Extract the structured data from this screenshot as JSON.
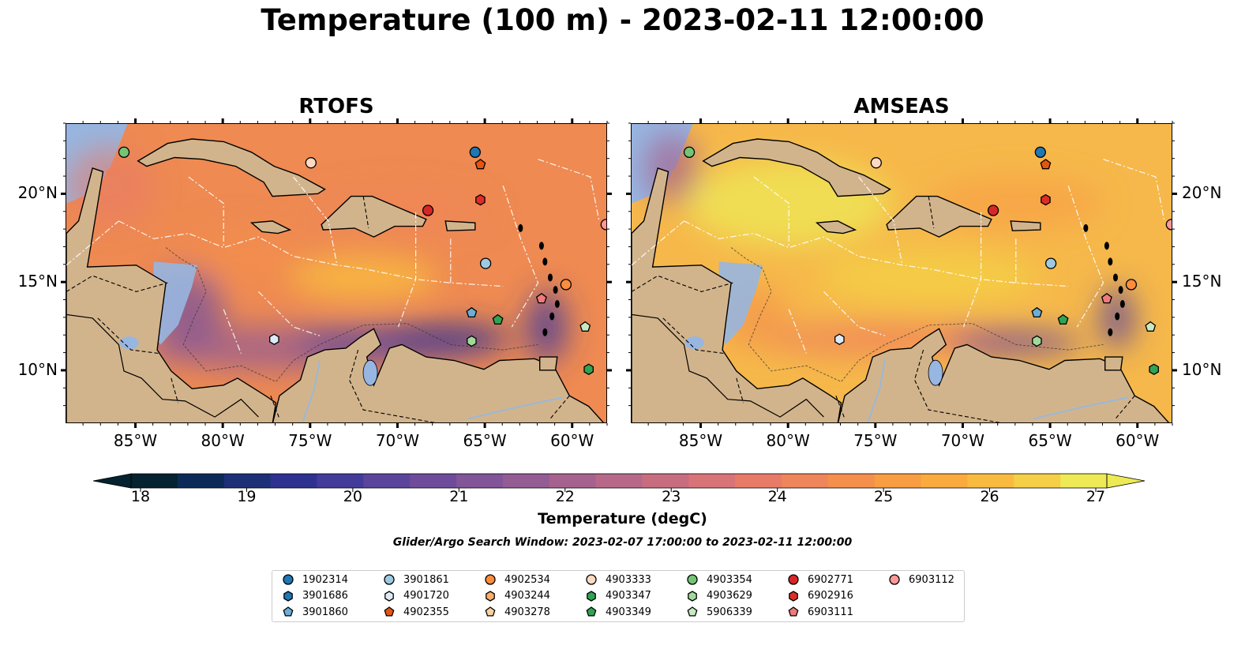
{
  "title": "Temperature (100 m) - 2023-02-11 12:00:00",
  "panels": [
    {
      "title": "RTOFS",
      "variant": "rtofs"
    },
    {
      "title": "AMSEAS",
      "variant": "amseas"
    }
  ],
  "map": {
    "lon_range": [
      -89,
      -58
    ],
    "lat_range": [
      7,
      24
    ],
    "lon_ticks": [
      "85°W",
      "80°W",
      "75°W",
      "70°W",
      "65°W",
      "60°W"
    ],
    "lat_ticks": [
      "20°N",
      "15°N",
      "10°N"
    ],
    "lon_tick_values": [
      -85,
      -80,
      -75,
      -70,
      -65,
      -60
    ],
    "lat_tick_values": [
      20,
      15,
      10
    ]
  },
  "colorbar": {
    "label": "Temperature (degC)",
    "ticks": [
      "18",
      "19",
      "20",
      "21",
      "22",
      "23",
      "24",
      "25",
      "26",
      "27"
    ],
    "min": 18,
    "max": 27,
    "colors": [
      "#04222f",
      "#0c2a57",
      "#1c2f77",
      "#2f3190",
      "#433b9a",
      "#5b449c",
      "#6e4c9b",
      "#815597",
      "#935c93",
      "#a5628e",
      "#b76888",
      "#c86d80",
      "#d87377",
      "#e77b68",
      "#ef855a",
      "#f4904c",
      "#f89d42",
      "#f9ab3d",
      "#f9bb3f",
      "#f5cf47",
      "#edea55"
    ],
    "extend": "both"
  },
  "search_window": "Glider/Argo Search Window: 2023-02-07 17:00:00 to 2023-02-11 12:00:00",
  "colors": {
    "land": "#d2b48c",
    "ocean_shallow": "#97b6e1",
    "rtofs_base": "#ee8a52",
    "amseas_base": "#f6b84a"
  },
  "legend": [
    {
      "id": "1902314",
      "marker": "circle",
      "color": "#1f77b4"
    },
    {
      "id": "3901686",
      "marker": "hexagon",
      "color": "#1f77b4"
    },
    {
      "id": "3901860",
      "marker": "pentagon",
      "color": "#6baed6"
    },
    {
      "id": "3901861",
      "marker": "circle",
      "color": "#9ecae1"
    },
    {
      "id": "4901720",
      "marker": "hexagon",
      "color": "#deebf7"
    },
    {
      "id": "4902355",
      "marker": "pentagon",
      "color": "#e6550d"
    },
    {
      "id": "4902534",
      "marker": "circle",
      "color": "#fd8d3c"
    },
    {
      "id": "4903244",
      "marker": "hexagon",
      "color": "#fdae6b"
    },
    {
      "id": "4903278",
      "marker": "pentagon",
      "color": "#fdd0a2"
    },
    {
      "id": "4903333",
      "marker": "circle",
      "color": "#fdd9c2"
    },
    {
      "id": "4903347",
      "marker": "hexagon",
      "color": "#31a354"
    },
    {
      "id": "4903349",
      "marker": "pentagon",
      "color": "#31a354"
    },
    {
      "id": "4903354",
      "marker": "circle",
      "color": "#74c476"
    },
    {
      "id": "4903629",
      "marker": "hexagon",
      "color": "#a1d99b"
    },
    {
      "id": "5906339",
      "marker": "pentagon",
      "color": "#c7e9c0"
    },
    {
      "id": "6902771",
      "marker": "circle",
      "color": "#d62728"
    },
    {
      "id": "6902916",
      "marker": "hexagon",
      "color": "#de2d26"
    },
    {
      "id": "6903111",
      "marker": "pentagon",
      "color": "#f07a7a"
    },
    {
      "id": "6903112",
      "marker": "circle",
      "color": "#ff9896"
    }
  ],
  "floats": [
    {
      "id": "4903354",
      "lon": -85.7,
      "lat": 22.4
    },
    {
      "id": "4903333",
      "lon": -75.0,
      "lat": 21.8
    },
    {
      "id": "1902314",
      "lon": -65.6,
      "lat": 22.4
    },
    {
      "id": "4902355",
      "lon": -65.3,
      "lat": 21.7
    },
    {
      "id": "6902916",
      "lon": -65.3,
      "lat": 19.7
    },
    {
      "id": "6902771",
      "lon": -68.3,
      "lat": 19.1
    },
    {
      "id": "6903112",
      "lon": -58.1,
      "lat": 18.3
    },
    {
      "id": "3901861",
      "lon": -65.0,
      "lat": 16.1
    },
    {
      "id": "4902534",
      "lon": -60.4,
      "lat": 14.9
    },
    {
      "id": "6903111",
      "lon": -61.8,
      "lat": 14.1
    },
    {
      "id": "3901860",
      "lon": -65.8,
      "lat": 13.3
    },
    {
      "id": "4903349",
      "lon": -64.3,
      "lat": 12.9
    },
    {
      "id": "5906339",
      "lon": -59.3,
      "lat": 12.5
    },
    {
      "id": "4901720",
      "lon": -77.1,
      "lat": 11.8
    },
    {
      "id": "4903629",
      "lon": -65.8,
      "lat": 11.7
    },
    {
      "id": "4903347",
      "lon": -59.1,
      "lat": 10.1
    }
  ]
}
